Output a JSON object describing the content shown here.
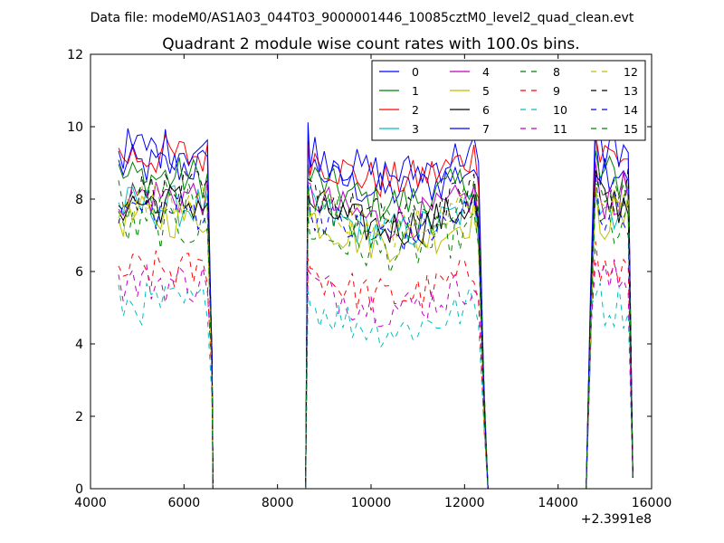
{
  "chart_data": {
    "type": "line",
    "suptitle": "Data file: modeM0/AS1A03_044T03_9000001446_10085cztM0_level2_quad_clean.evt",
    "title": "Quadrant 2 module wise count rates with 100.0s bins.",
    "x_offset_label": "+2.3991e8",
    "xlim": [
      4000,
      16000
    ],
    "ylim": [
      0,
      12
    ],
    "x_ticks": [
      "4000",
      "6000",
      "8000",
      "10000",
      "12000",
      "14000",
      "16000"
    ],
    "y_ticks": [
      "0",
      "2",
      "4",
      "6",
      "8",
      "10",
      "12"
    ],
    "grid": false,
    "legend": {
      "location": "top-right",
      "columns": 4
    },
    "gaps": [
      [
        6600,
        8600
      ],
      [
        12500,
        14600
      ]
    ],
    "segments": [
      [
        4600,
        6400
      ],
      [
        8700,
        12200
      ],
      [
        14800,
        15500
      ]
    ],
    "series": [
      {
        "name": "0",
        "color": "#0000ff",
        "style": "solid",
        "level": 8.9
      },
      {
        "name": "1",
        "color": "#008000",
        "style": "solid",
        "level": 8.6
      },
      {
        "name": "2",
        "color": "#ff0000",
        "style": "solid",
        "level": 9.2
      },
      {
        "name": "3",
        "color": "#00bfbf",
        "style": "solid",
        "level": 7.8
      },
      {
        "name": "4",
        "color": "#bf00bf",
        "style": "solid",
        "level": 8.1
      },
      {
        "name": "5",
        "color": "#bfbf00",
        "style": "solid",
        "level": 7.5
      },
      {
        "name": "6",
        "color": "#000000",
        "style": "solid",
        "level": 7.9
      },
      {
        "name": "7",
        "color": "#0000ff",
        "style": "solid",
        "level": 9.4
      },
      {
        "name": "8",
        "color": "#008000",
        "style": "dashed",
        "level": 7.2
      },
      {
        "name": "9",
        "color": "#ff0000",
        "style": "dashed",
        "level": 6.0
      },
      {
        "name": "10",
        "color": "#00bfbf",
        "style": "dashed",
        "level": 5.1
      },
      {
        "name": "11",
        "color": "#bf00bf",
        "style": "dashed",
        "level": 5.7
      },
      {
        "name": "12",
        "color": "#bfbf00",
        "style": "dashed",
        "level": 7.9
      },
      {
        "name": "13",
        "color": "#000000",
        "style": "dashed",
        "level": 8.2
      },
      {
        "name": "14",
        "color": "#0000ff",
        "style": "dashed",
        "level": 7.7
      },
      {
        "name": "15",
        "color": "#008000",
        "style": "dashed",
        "level": 8.0
      }
    ]
  }
}
